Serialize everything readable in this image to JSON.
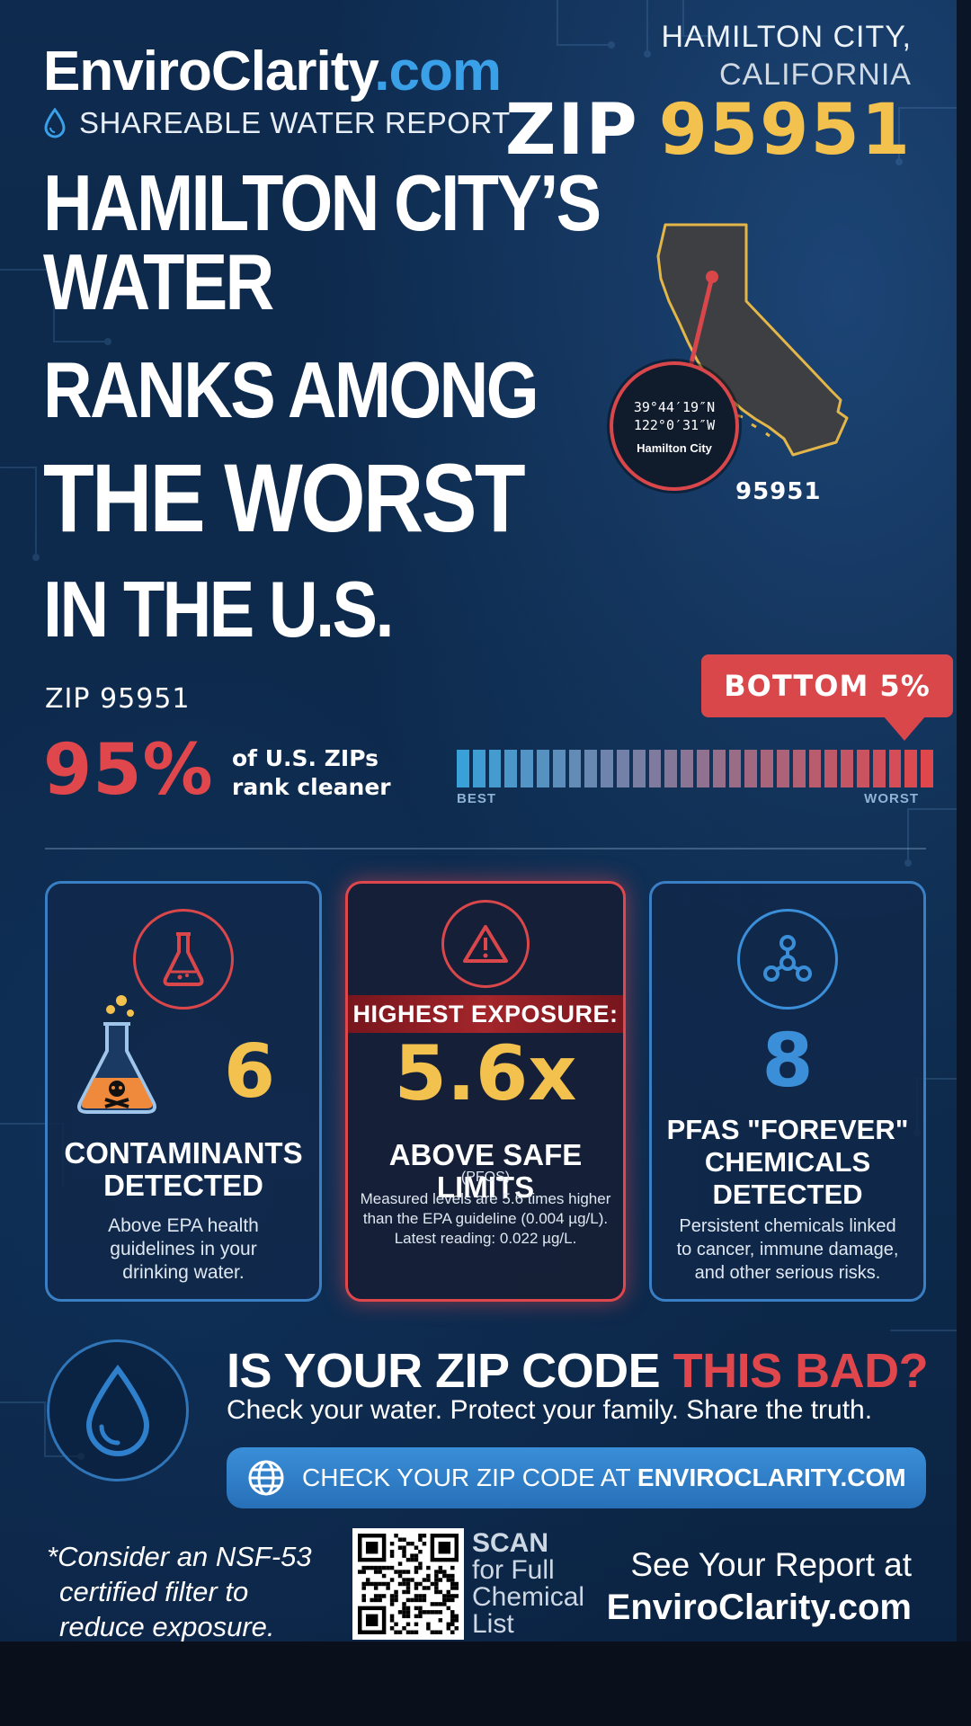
{
  "brand": {
    "name": "EnviroClarity",
    "tld": ".com",
    "subtitle": "SHAREABLE WATER REPORT"
  },
  "location": {
    "city": "HAMILTON CITY,",
    "state": "CALIFORNIA",
    "zip_label": "ZIP",
    "zip": "95951"
  },
  "headline": {
    "line1": "HAMILTON CITY’S WATER",
    "line2": "RANKS AMONG",
    "line3": "THE WORST",
    "line4": "IN THE U.S."
  },
  "map": {
    "lat": "39°44′19″N",
    "lon": "122°0′31″W",
    "place": "Hamilton City",
    "zip": "95951"
  },
  "ranking": {
    "zip_text": "ZIP 95951",
    "percent": "95%",
    "text_line1": "of U.S. ZIPs",
    "text_line2": "rank cleaner",
    "badge": "BOTTOM 5%",
    "scale_best": "BEST",
    "scale_worst": "WORST",
    "percentile": 0.95
  },
  "cards": {
    "contaminants": {
      "value": "6",
      "title_line1": "CONTAMINANTS",
      "title_line2": "DETECTED",
      "desc_line1": "Above EPA health",
      "desc_line2": "guidelines in your",
      "desc_line3": "drinking water."
    },
    "exposure": {
      "band": "HIGHEST EXPOSURE:",
      "value": "5.6x",
      "title": "ABOVE SAFE LIMITS",
      "sub": "(PFOS)",
      "desc_line1": "Measured levels are 5.6 times higher",
      "desc_line2": "than the EPA guideline (0.004 µg/L).",
      "desc_line3": "Latest reading: 0.022 µg/L."
    },
    "pfas": {
      "value": "8",
      "title_line1": "PFAS \"FOREVER\"",
      "title_line2": "CHEMICALS",
      "title_line3": "DETECTED",
      "desc_line1": "Persistent chemicals linked",
      "desc_line2": "to cancer, immune damage,",
      "desc_line3": "and other serious risks."
    }
  },
  "cta": {
    "title_a": "IS YOUR ZIP CODE ",
    "title_b": "THIS BAD?",
    "subtitle": "Check your water. Protect your family. Share the truth.",
    "button_prefix": "CHECK YOUR ZIP CODE AT ",
    "button_domain": "ENVIROCLARITY.COM"
  },
  "footer": {
    "disclaimer_line1": "*Consider an NSF-53",
    "disclaimer_line2": "certified filter to",
    "disclaimer_line3": "reduce exposure.",
    "scan_line1": "SCAN",
    "scan_line2": "for Full",
    "scan_line3": "Chemical",
    "scan_line4": "List",
    "see_line1": "See Your Report at",
    "see_line2": "EnviroClarity.com"
  },
  "colors": {
    "accent_red": "#e0474c",
    "accent_yellow": "#f2c14e",
    "accent_blue": "#3a8fd8",
    "background": "#0d2a4c"
  },
  "icons": [
    "water-drop-icon",
    "california-map-icon",
    "flask-icon",
    "poison-flask-icon",
    "warning-triangle-icon",
    "molecule-icon",
    "globe-icon",
    "qr-code-icon"
  ]
}
